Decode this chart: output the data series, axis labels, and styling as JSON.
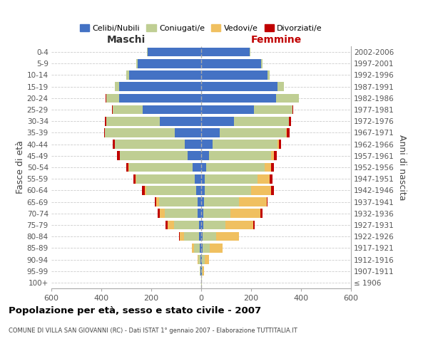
{
  "age_groups": [
    "100+",
    "95-99",
    "90-94",
    "85-89",
    "80-84",
    "75-79",
    "70-74",
    "65-69",
    "60-64",
    "55-59",
    "50-54",
    "45-49",
    "40-44",
    "35-39",
    "30-34",
    "25-29",
    "20-24",
    "15-19",
    "10-14",
    "5-9",
    "0-4"
  ],
  "birth_years": [
    "≤ 1906",
    "1907-1911",
    "1912-1916",
    "1917-1921",
    "1922-1926",
    "1927-1931",
    "1932-1936",
    "1937-1941",
    "1942-1946",
    "1947-1951",
    "1952-1956",
    "1957-1961",
    "1962-1966",
    "1967-1971",
    "1972-1976",
    "1977-1981",
    "1982-1986",
    "1987-1991",
    "1992-1996",
    "1997-2001",
    "2002-2006"
  ],
  "male": {
    "celibi": [
      0,
      2,
      3,
      5,
      8,
      10,
      15,
      15,
      20,
      25,
      35,
      55,
      65,
      105,
      165,
      235,
      330,
      330,
      290,
      255,
      215
    ],
    "coniugati": [
      1,
      3,
      8,
      25,
      60,
      100,
      130,
      155,
      200,
      235,
      255,
      270,
      280,
      280,
      215,
      120,
      50,
      15,
      10,
      5,
      2
    ],
    "vedovi": [
      0,
      1,
      2,
      8,
      18,
      25,
      20,
      10,
      5,
      3,
      2,
      1,
      1,
      0,
      0,
      0,
      0,
      0,
      0,
      0,
      0
    ],
    "divorziati": [
      0,
      0,
      0,
      0,
      2,
      8,
      8,
      5,
      12,
      8,
      8,
      10,
      8,
      5,
      5,
      3,
      2,
      0,
      0,
      0,
      0
    ]
  },
  "female": {
    "nubili": [
      0,
      2,
      3,
      5,
      5,
      8,
      8,
      12,
      15,
      15,
      20,
      30,
      45,
      75,
      130,
      210,
      300,
      305,
      265,
      240,
      195
    ],
    "coniugate": [
      2,
      3,
      10,
      30,
      55,
      90,
      110,
      140,
      185,
      210,
      235,
      250,
      260,
      265,
      220,
      155,
      90,
      25,
      10,
      5,
      2
    ],
    "vedove": [
      1,
      5,
      18,
      50,
      90,
      110,
      120,
      110,
      80,
      50,
      25,
      12,
      5,
      3,
      2,
      1,
      0,
      0,
      0,
      0,
      0
    ],
    "divorziate": [
      0,
      0,
      0,
      2,
      2,
      5,
      8,
      5,
      12,
      12,
      10,
      12,
      10,
      10,
      8,
      3,
      2,
      0,
      0,
      0,
      0
    ]
  },
  "colors": {
    "celibi_nubili": "#4472C4",
    "coniugati": "#BFCE93",
    "vedovi": "#F0C060",
    "divorziati": "#C00000"
  },
  "title": "Popolazione per età, sesso e stato civile - 2007",
  "subtitle": "COMUNE DI VILLA SAN GIOVANNI (RC) - Dati ISTAT 1° gennaio 2007 - Elaborazione TUTTITALIA.IT",
  "ylabel_left": "Fasce di età",
  "ylabel_right": "Anni di nascita",
  "label_maschi": "Maschi",
  "label_femmine": "Femmine",
  "xlim": 600,
  "legend_labels": [
    "Celibi/Nubili",
    "Coniugati/e",
    "Vedovi/e",
    "Divorziati/e"
  ],
  "background_color": "#ffffff",
  "grid_color": "#cccccc"
}
